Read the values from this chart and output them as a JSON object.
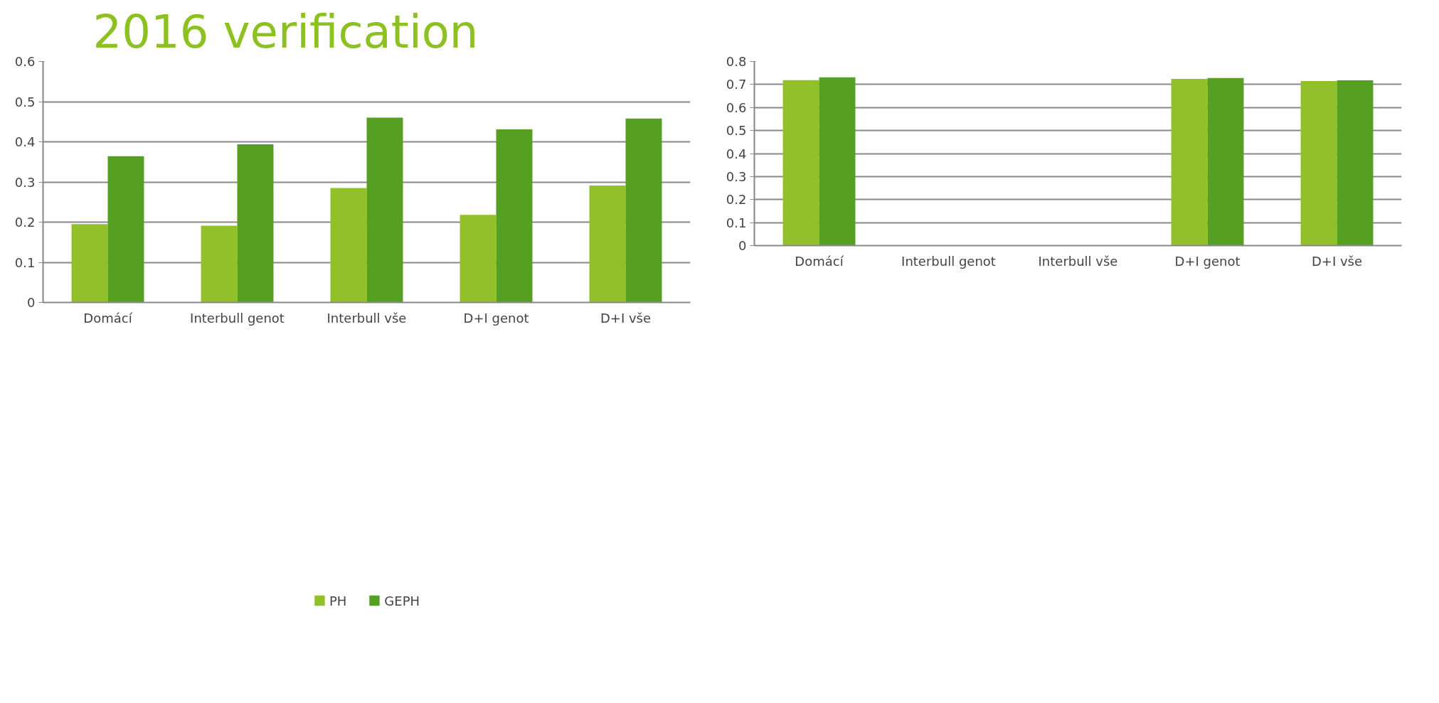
{
  "chart_data": [
    {
      "type": "bar",
      "title": "2016 verification",
      "categories": [
        "Domácí",
        "Interbull genot",
        "Interbull vše",
        "D+I genot",
        "D+I vše"
      ],
      "series": [
        {
          "name": "PH",
          "color": "#92c02a",
          "values": [
            0.195,
            0.191,
            0.285,
            0.218,
            0.291
          ]
        },
        {
          "name": "GEPH",
          "color": "#55a022",
          "values": [
            0.364,
            0.394,
            0.46,
            0.431,
            0.458
          ]
        }
      ],
      "ylim": [
        0,
        0.6
      ],
      "yticks": [
        0,
        0.1,
        0.2,
        0.3,
        0.4,
        0.5,
        0.6
      ],
      "grid": "y",
      "legend": "bottom"
    },
    {
      "type": "bar",
      "categories": [
        "Domácí",
        "Interbull genot",
        "Interbull vše",
        "D+I genot",
        "D+I vše"
      ],
      "series": [
        {
          "color": "#92c02a",
          "values": [
            0.719,
            null,
            null,
            0.724,
            0.715
          ]
        },
        {
          "color": "#55a022",
          "values": [
            0.731,
            null,
            null,
            0.728,
            0.718
          ]
        }
      ],
      "ylim": [
        0,
        0.8
      ],
      "yticks": [
        0,
        0.1,
        0.2,
        0.3,
        0.4,
        0.5,
        0.6,
        0.7,
        0.8
      ],
      "grid": "y"
    }
  ]
}
